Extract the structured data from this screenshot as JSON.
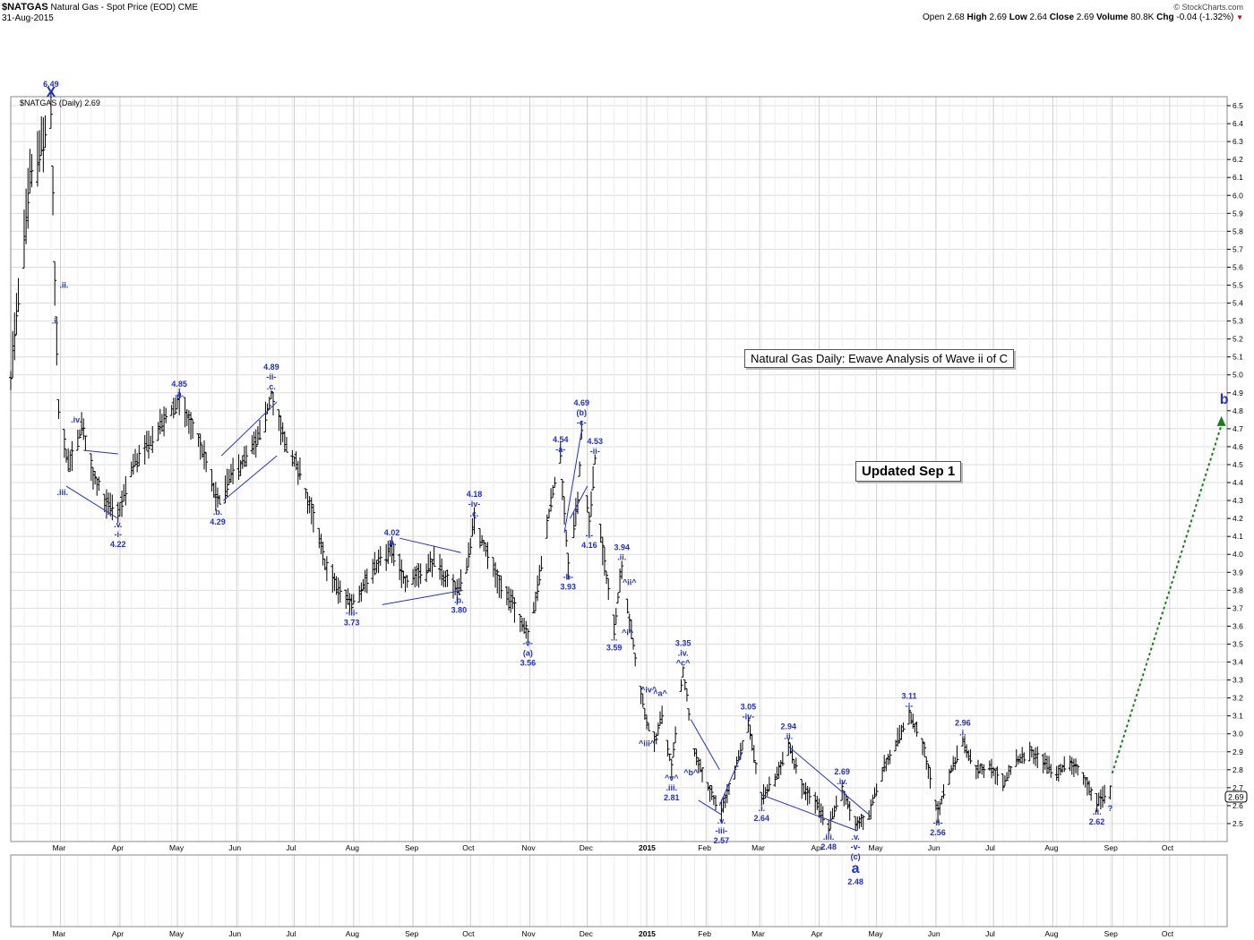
{
  "header": {
    "symbol": "$NATGAS",
    "description": "Natural Gas - Spot Price (EOD)",
    "exchange": "CME",
    "date": "31-Aug-2015",
    "logo": "© StockCharts.com",
    "ohlc": {
      "open_label": "Open",
      "open": "2.68",
      "high_label": "High",
      "high": "2.69",
      "low_label": "Low",
      "low": "2.64",
      "close_label": "Close",
      "close": "2.69",
      "volume_label": "Volume",
      "volume": "80.8K",
      "chg_label": "Chg",
      "chg": "-0.04 (-1.32%)"
    }
  },
  "legend": "$NATGAS (Daily) 2.69",
  "price_tag": "2.69",
  "annotations": {
    "title_box": "Natural Gas Daily: Ewave Analysis of Wave ii of C",
    "updated_box": "Updated Sep 1"
  },
  "colors": {
    "wave_label": "#1f2fd0",
    "grid": "#dcdcdc",
    "price_bar": "#000000",
    "projection": "#1a7f1a",
    "down_arrow": "#c00000"
  },
  "chart_data": {
    "type": "ohlc",
    "period": "daily",
    "x_axis": {
      "labels_top": [
        "Mar",
        "Apr",
        "May",
        "Jun",
        "Jul",
        "Aug",
        "Sep",
        "Oct",
        "Nov",
        "Dec",
        "2015",
        "Feb",
        "Mar",
        "Apr",
        "May",
        "Jun",
        "Jul",
        "Aug",
        "Sep",
        "Oct"
      ],
      "labels_bottom": [
        "Mar",
        "Apr",
        "May",
        "Jun",
        "Jul",
        "Aug",
        "Sep",
        "Oct",
        "Nov",
        "Dec",
        "2015",
        "Feb",
        "Mar",
        "Apr",
        "May",
        "Jun",
        "Jul",
        "Aug",
        "Sep",
        "Oct"
      ],
      "tick_dates": [
        "2014-03-01",
        "2014-04-01",
        "2014-05-01",
        "2014-06-01",
        "2014-07-01",
        "2014-08-01",
        "2014-09-01",
        "2014-10-01",
        "2014-11-01",
        "2014-12-01",
        "2015-01-01",
        "2015-02-01",
        "2015-03-01",
        "2015-04-01",
        "2015-05-01",
        "2015-06-01",
        "2015-07-01",
        "2015-08-01",
        "2015-09-01",
        "2015-10-01"
      ],
      "range": [
        "2014-02-03",
        "2015-10-31"
      ]
    },
    "y_axis": {
      "range": [
        2.4,
        6.55
      ],
      "tick_labels": [
        "2.5",
        "2.6",
        "2.7",
        "2.8",
        "2.9",
        "3.0",
        "3.1",
        "3.2",
        "3.3",
        "3.4",
        "3.5",
        "3.6",
        "3.7",
        "3.8",
        "3.9",
        "4.0",
        "4.1",
        "4.2",
        "4.3",
        "4.4",
        "4.5",
        "4.6",
        "4.7",
        "4.8",
        "4.9",
        "5.0",
        "5.1",
        "5.2",
        "5.3",
        "5.4",
        "5.5",
        "5.6",
        "5.7",
        "5.8",
        "5.9",
        "6.0",
        "6.1",
        "6.2",
        "6.3",
        "6.4",
        "6.5"
      ],
      "position": "right"
    },
    "grid": true,
    "price_path": [
      [
        "2014-02-03",
        5.0
      ],
      [
        "2014-02-07",
        5.4
      ],
      [
        "2014-02-13",
        6.1
      ],
      [
        "2014-02-20",
        6.3
      ],
      [
        "2014-02-24",
        6.49
      ],
      [
        "2014-02-26",
        5.5
      ],
      [
        "2014-02-28",
        4.8
      ],
      [
        "2014-03-05",
        4.5
      ],
      [
        "2014-03-10",
        4.62
      ],
      [
        "2014-03-12",
        4.72
      ],
      [
        "2014-03-18",
        4.45
      ],
      [
        "2014-03-25",
        4.28
      ],
      [
        "2014-03-31",
        4.22
      ],
      [
        "2014-04-08",
        4.5
      ],
      [
        "2014-04-15",
        4.6
      ],
      [
        "2014-04-22",
        4.72
      ],
      [
        "2014-04-28",
        4.8
      ],
      [
        "2014-05-02",
        4.85
      ],
      [
        "2014-05-09",
        4.7
      ],
      [
        "2014-05-15",
        4.55
      ],
      [
        "2014-05-20",
        4.35
      ],
      [
        "2014-05-22",
        4.29
      ],
      [
        "2014-05-30",
        4.45
      ],
      [
        "2014-06-07",
        4.55
      ],
      [
        "2014-06-14",
        4.68
      ],
      [
        "2014-06-19",
        4.89
      ],
      [
        "2014-06-26",
        4.62
      ],
      [
        "2014-07-04",
        4.45
      ],
      [
        "2014-07-11",
        4.2
      ],
      [
        "2014-07-17",
        3.95
      ],
      [
        "2014-07-24",
        3.8
      ],
      [
        "2014-07-31",
        3.73
      ],
      [
        "2014-08-07",
        3.85
      ],
      [
        "2014-08-15",
        3.97
      ],
      [
        "2014-08-21",
        4.02
      ],
      [
        "2014-08-28",
        3.85
      ],
      [
        "2014-09-05",
        3.9
      ],
      [
        "2014-09-12",
        3.96
      ],
      [
        "2014-09-19",
        3.85
      ],
      [
        "2014-09-25",
        3.8
      ],
      [
        "2014-09-29",
        3.95
      ],
      [
        "2014-10-03",
        4.18
      ],
      [
        "2014-10-10",
        4.0
      ],
      [
        "2014-10-17",
        3.82
      ],
      [
        "2014-10-24",
        3.7
      ],
      [
        "2014-10-31",
        3.56
      ],
      [
        "2014-11-05",
        3.8
      ],
      [
        "2014-11-12",
        4.3
      ],
      [
        "2014-11-17",
        4.54
      ],
      [
        "2014-11-21",
        3.93
      ],
      [
        "2014-11-26",
        4.3
      ],
      [
        "2014-11-28",
        4.69
      ],
      [
        "2014-12-02",
        4.16
      ],
      [
        "2014-12-05",
        4.53
      ],
      [
        "2014-12-08",
        4.1
      ],
      [
        "2014-12-15",
        3.59
      ],
      [
        "2014-12-19",
        3.94
      ],
      [
        "2014-12-24",
        3.55
      ],
      [
        "2014-12-31",
        3.1
      ],
      [
        "2015-01-05",
        2.95
      ],
      [
        "2015-01-09",
        3.1
      ],
      [
        "2015-01-14",
        2.81
      ],
      [
        "2015-01-20",
        3.35
      ],
      [
        "2015-01-26",
        2.9
      ],
      [
        "2015-02-02",
        2.7
      ],
      [
        "2015-02-09",
        2.57
      ],
      [
        "2015-02-16",
        2.8
      ],
      [
        "2015-02-23",
        3.05
      ],
      [
        "2015-03-02",
        2.64
      ],
      [
        "2015-03-09",
        2.75
      ],
      [
        "2015-03-16",
        2.94
      ],
      [
        "2015-03-23",
        2.7
      ],
      [
        "2015-03-30",
        2.62
      ],
      [
        "2015-04-06",
        2.48
      ],
      [
        "2015-04-13",
        2.69
      ],
      [
        "2015-04-20",
        2.48
      ],
      [
        "2015-04-27",
        2.55
      ],
      [
        "2015-05-04",
        2.8
      ],
      [
        "2015-05-11",
        2.95
      ],
      [
        "2015-05-18",
        3.11
      ],
      [
        "2015-05-26",
        2.9
      ],
      [
        "2015-06-02",
        2.56
      ],
      [
        "2015-06-09",
        2.8
      ],
      [
        "2015-06-15",
        2.96
      ],
      [
        "2015-06-22",
        2.8
      ],
      [
        "2015-06-29",
        2.82
      ],
      [
        "2015-07-06",
        2.72
      ],
      [
        "2015-07-13",
        2.85
      ],
      [
        "2015-07-20",
        2.9
      ],
      [
        "2015-07-27",
        2.84
      ],
      [
        "2015-08-03",
        2.78
      ],
      [
        "2015-08-10",
        2.85
      ],
      [
        "2015-08-17",
        2.75
      ],
      [
        "2015-08-24",
        2.62
      ],
      [
        "2015-08-31",
        2.69
      ]
    ],
    "projection": {
      "from": [
        "2015-09-01",
        2.78
      ],
      "to": [
        "2015-10-28",
        4.77
      ],
      "label": "b"
    },
    "wave_labels": [
      {
        "d": "2014-02-24",
        "p": 6.49,
        "lines": [
          "6.49",
          "X"
        ],
        "pos": "above",
        "big": true
      },
      {
        "d": "2014-02-27",
        "p": 5.5,
        "lines": [
          ".ii."
        ],
        "pos": "right"
      },
      {
        "d": "2014-02-23",
        "p": 5.3,
        "lines": [
          ".i."
        ],
        "pos": "right"
      },
      {
        "d": "2014-03-05",
        "p": 4.75,
        "lines": [
          ".iv."
        ],
        "pos": "right"
      },
      {
        "d": "2014-03-02",
        "p": 4.4,
        "lines": [
          ".iii."
        ],
        "pos": "below"
      },
      {
        "d": "2014-03-31",
        "p": 4.22,
        "lines": [
          ".v.",
          "-i-",
          "4.22"
        ],
        "pos": "below"
      },
      {
        "d": "2014-05-02",
        "p": 4.85,
        "lines": [
          "4.85",
          ".a."
        ],
        "pos": "above"
      },
      {
        "d": "2014-05-22",
        "p": 4.29,
        "lines": [
          ".b.",
          "4.29"
        ],
        "pos": "below"
      },
      {
        "d": "2014-06-19",
        "p": 4.89,
        "lines": [
          "4.89",
          "-ii-",
          ".c."
        ],
        "pos": "above"
      },
      {
        "d": "2014-07-31",
        "p": 3.73,
        "lines": [
          "-iii-",
          "3.73"
        ],
        "pos": "below"
      },
      {
        "d": "2014-08-21",
        "p": 4.02,
        "lines": [
          "4.02",
          ".a."
        ],
        "pos": "above"
      },
      {
        "d": "2014-09-25",
        "p": 3.8,
        "lines": [
          ".b.",
          "3.80"
        ],
        "pos": "below"
      },
      {
        "d": "2014-10-03",
        "p": 4.18,
        "lines": [
          "4.18",
          "-iv-",
          ".c."
        ],
        "pos": "above"
      },
      {
        "d": "2014-10-31",
        "p": 3.56,
        "lines": [
          "-v-",
          "(a)",
          "3.56"
        ],
        "pos": "below"
      },
      {
        "d": "2014-11-17",
        "p": 4.54,
        "lines": [
          "4.54",
          "-a-"
        ],
        "pos": "above"
      },
      {
        "d": "2014-11-21",
        "p": 3.93,
        "lines": [
          "-b-",
          "3.93"
        ],
        "pos": "below"
      },
      {
        "d": "2014-11-28",
        "p": 4.69,
        "lines": [
          "4.69",
          "(b)",
          "-c-"
        ],
        "pos": "above"
      },
      {
        "d": "2014-12-05",
        "p": 4.53,
        "lines": [
          "4.53",
          "-ii-"
        ],
        "pos": "above"
      },
      {
        "d": "2014-12-02",
        "p": 4.16,
        "lines": [
          "-i-",
          "4.16"
        ],
        "pos": "below"
      },
      {
        "d": "2014-12-19",
        "p": 3.94,
        "lines": [
          "3.94",
          ".ii."
        ],
        "pos": "above"
      },
      {
        "d": "2014-12-15",
        "p": 3.59,
        "lines": [
          ".i.",
          "3.59"
        ],
        "pos": "below"
      },
      {
        "d": "2014-12-23",
        "p": 3.8,
        "lines": [
          "^ii^"
        ],
        "pos": "above"
      },
      {
        "d": "2014-12-22",
        "p": 3.62,
        "lines": [
          "^i^"
        ],
        "pos": "below"
      },
      {
        "d": "2015-01-02",
        "p": 3.2,
        "lines": [
          "^iv^"
        ],
        "pos": "above"
      },
      {
        "d": "2015-01-08",
        "p": 3.18,
        "lines": [
          "^a^"
        ],
        "pos": "above"
      },
      {
        "d": "2015-01-01",
        "p": 3.0,
        "lines": [
          "^iii^"
        ],
        "pos": "below"
      },
      {
        "d": "2015-01-20",
        "p": 3.35,
        "lines": [
          "3.35",
          ".iv.",
          "^c^"
        ],
        "pos": "above"
      },
      {
        "d": "2015-01-14",
        "p": 2.81,
        "lines": [
          "^v^",
          ".iii.",
          "2.81"
        ],
        "pos": "below"
      },
      {
        "d": "2015-01-24",
        "p": 2.84,
        "lines": [
          "^b^"
        ],
        "pos": "below"
      },
      {
        "d": "2015-02-09",
        "p": 2.57,
        "lines": [
          ".v.",
          "-iii-",
          "2.57"
        ],
        "pos": "below"
      },
      {
        "d": "2015-02-23",
        "p": 3.05,
        "lines": [
          "3.05",
          "-iv-"
        ],
        "pos": "above"
      },
      {
        "d": "2015-03-02",
        "p": 2.64,
        "lines": [
          ".i.",
          "2.64"
        ],
        "pos": "below"
      },
      {
        "d": "2015-03-16",
        "p": 2.94,
        "lines": [
          "2.94",
          ".ii."
        ],
        "pos": "above"
      },
      {
        "d": "2015-04-13",
        "p": 2.69,
        "lines": [
          "2.69",
          ".iv."
        ],
        "pos": "above"
      },
      {
        "d": "2015-04-06",
        "p": 2.48,
        "lines": [
          ".iii.",
          "2.48"
        ],
        "pos": "below"
      },
      {
        "d": "2015-04-20",
        "p": 2.48,
        "lines": [
          ".v.",
          "-v-",
          "(c)",
          "a",
          "2.48"
        ],
        "pos": "below",
        "big_index": 3
      },
      {
        "d": "2015-05-18",
        "p": 3.11,
        "lines": [
          "3.11",
          "-i-"
        ],
        "pos": "above"
      },
      {
        "d": "2015-06-02",
        "p": 2.56,
        "lines": [
          "-ii-",
          "2.56"
        ],
        "pos": "below"
      },
      {
        "d": "2015-06-15",
        "p": 2.96,
        "lines": [
          "2.96",
          ".i."
        ],
        "pos": "above"
      },
      {
        "d": "2015-08-24",
        "p": 2.62,
        "lines": [
          ".ii.",
          "2.62"
        ],
        "pos": "below"
      },
      {
        "d": "2015-08-31",
        "p": 2.64,
        "lines": [
          "?"
        ],
        "pos": "below"
      }
    ],
    "trendlines": [
      {
        "a": [
          "2014-03-13",
          4.58
        ],
        "b": [
          "2014-03-31",
          4.56
        ]
      },
      {
        "a": [
          "2014-03-04",
          4.38
        ],
        "b": [
          "2014-03-31",
          4.2
        ]
      },
      {
        "a": [
          "2014-05-24",
          4.55
        ],
        "b": [
          "2014-06-22",
          4.85
        ]
      },
      {
        "a": [
          "2014-05-25",
          4.3
        ],
        "b": [
          "2014-06-22",
          4.55
        ]
      },
      {
        "a": [
          "2014-08-16",
          3.72
        ],
        "b": [
          "2014-09-27",
          3.8
        ]
      },
      {
        "a": [
          "2014-08-25",
          4.09
        ],
        "b": [
          "2014-09-26",
          4.01
        ]
      },
      {
        "a": [
          "2014-11-19",
          4.12
        ],
        "b": [
          "2014-11-28",
          4.69
        ]
      },
      {
        "a": [
          "2014-11-22",
          4.2
        ],
        "b": [
          "2014-12-01",
          4.38
        ]
      },
      {
        "a": [
          "2015-01-24",
          3.08
        ],
        "b": [
          "2015-02-08",
          2.8
        ]
      },
      {
        "a": [
          "2015-01-28",
          2.63
        ],
        "b": [
          "2015-02-09",
          2.55
        ]
      },
      {
        "a": [
          "2015-02-08",
          2.6
        ],
        "b": [
          "2015-02-20",
          2.9
        ]
      },
      {
        "a": [
          "2015-03-02",
          2.66
        ],
        "b": [
          "2015-04-21",
          2.46
        ]
      },
      {
        "a": [
          "2015-03-16",
          2.93
        ],
        "b": [
          "2015-04-27",
          2.55
        ]
      }
    ]
  }
}
